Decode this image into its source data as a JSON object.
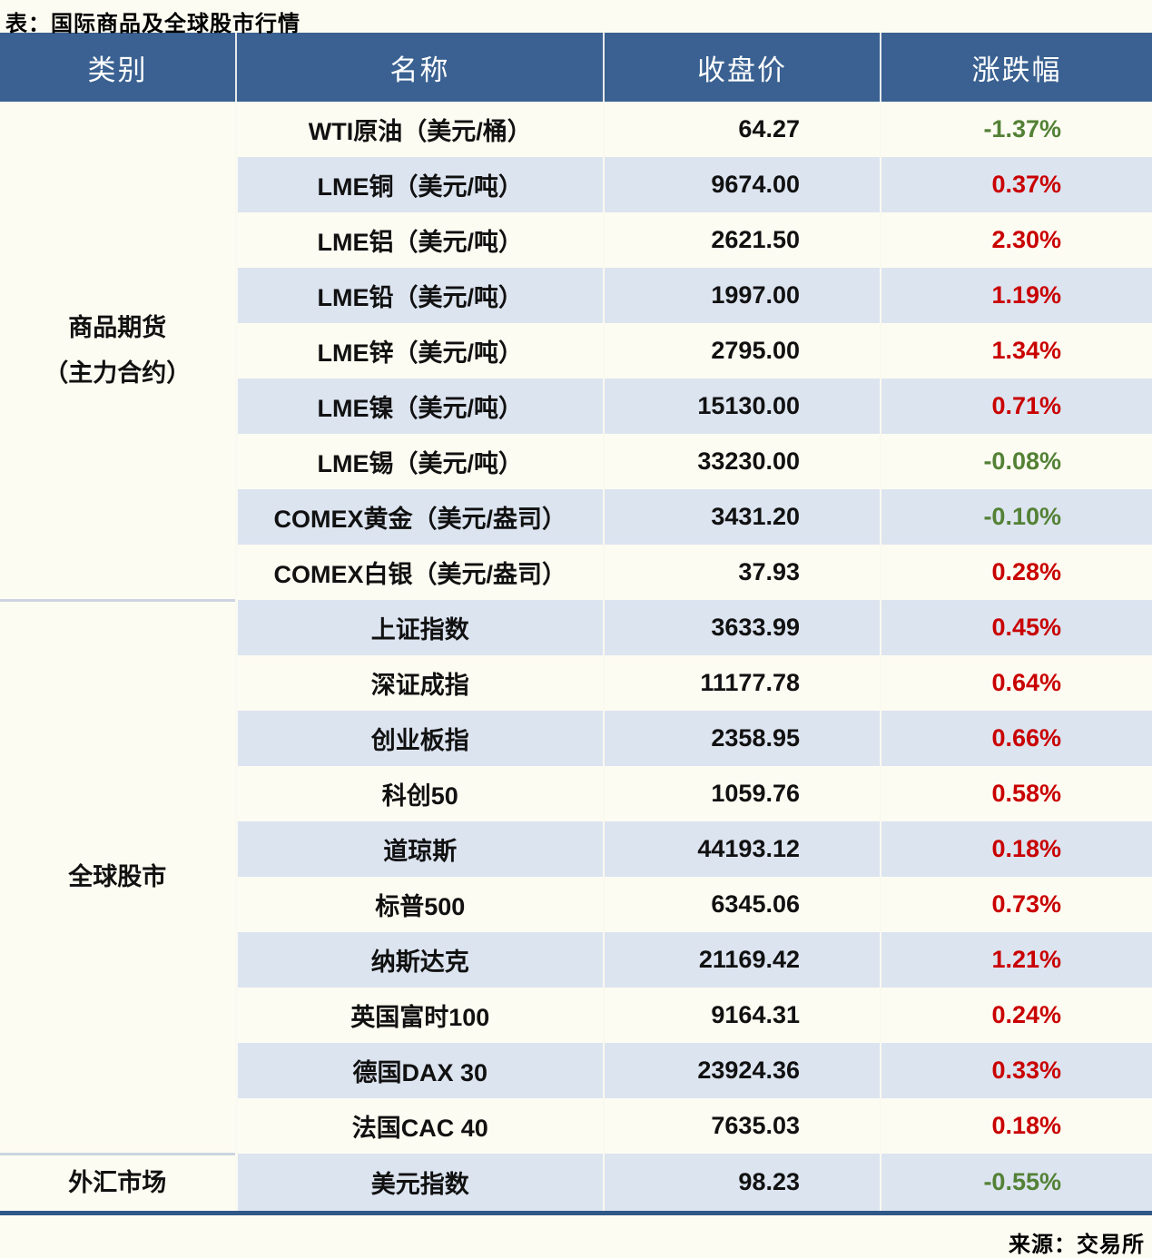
{
  "title": "表：国际商品及全球股市行情",
  "source": "来源：交易所",
  "colors": {
    "header_bg": "#3a6191",
    "row_bg": "#fdfcf2",
    "row_alt_bg": "#dce4f0",
    "up_red": "#c90000",
    "down_green": "#538135",
    "table_bottom_border": "#2f5788"
  },
  "table": {
    "headers": [
      "类别",
      "名称",
      "收盘价",
      "涨跌幅"
    ],
    "sections": [
      {
        "category_lines": [
          "商品期货",
          "（主力合约）"
        ],
        "rows": [
          {
            "name": "WTI原油（美元/桶）",
            "close": "64.27",
            "change": "-1.37%"
          },
          {
            "name": "LME铜（美元/吨）",
            "close": "9674.00",
            "change": "0.37%"
          },
          {
            "name": "LME铝（美元/吨）",
            "close": "2621.50",
            "change": "2.30%"
          },
          {
            "name": "LME铅（美元/吨）",
            "close": "1997.00",
            "change": "1.19%"
          },
          {
            "name": "LME锌（美元/吨）",
            "close": "2795.00",
            "change": "1.34%"
          },
          {
            "name": "LME镍（美元/吨）",
            "close": "15130.00",
            "change": "0.71%"
          },
          {
            "name": "LME锡（美元/吨）",
            "close": "33230.00",
            "change": "-0.08%"
          },
          {
            "name": "COMEX黄金（美元/盎司）",
            "close": "3431.20",
            "change": "-0.10%"
          },
          {
            "name": "COMEX白银（美元/盎司）",
            "close": "37.93",
            "change": "0.28%"
          }
        ]
      },
      {
        "category_lines": [
          "全球股市"
        ],
        "rows": [
          {
            "name": "上证指数",
            "close": "3633.99",
            "change": "0.45%"
          },
          {
            "name": "深证成指",
            "close": "11177.78",
            "change": "0.64%"
          },
          {
            "name": "创业板指",
            "close": "2358.95",
            "change": "0.66%"
          },
          {
            "name": "科创50",
            "close": "1059.76",
            "change": "0.58%"
          },
          {
            "name": "道琼斯",
            "close": "44193.12",
            "change": "0.18%"
          },
          {
            "name": "标普500",
            "close": "6345.06",
            "change": "0.73%"
          },
          {
            "name": "纳斯达克",
            "close": "21169.42",
            "change": "1.21%"
          },
          {
            "name": "英国富时100",
            "close": "9164.31",
            "change": "0.24%"
          },
          {
            "name": "德国DAX 30",
            "close": "23924.36",
            "change": "0.33%"
          },
          {
            "name": "法国CAC 40",
            "close": "7635.03",
            "change": "0.18%"
          }
        ]
      },
      {
        "category_lines": [
          "外汇市场"
        ],
        "rows": [
          {
            "name": "美元指数",
            "close": "98.23",
            "change": "-0.55%"
          }
        ]
      }
    ]
  },
  "chart_data": {
    "type": "table",
    "title": "表：国际商品及全球股市行情",
    "columns": [
      "类别",
      "名称",
      "收盘价",
      "涨跌幅"
    ],
    "rows": [
      [
        "商品期货（主力合约）",
        "WTI原油（美元/桶）",
        64.27,
        "-1.37%"
      ],
      [
        "商品期货（主力合约）",
        "LME铜（美元/吨）",
        9674.0,
        "0.37%"
      ],
      [
        "商品期货（主力合约）",
        "LME铝（美元/吨）",
        2621.5,
        "2.30%"
      ],
      [
        "商品期货（主力合约）",
        "LME铅（美元/吨）",
        1997.0,
        "1.19%"
      ],
      [
        "商品期货（主力合约）",
        "LME锌（美元/吨）",
        2795.0,
        "1.34%"
      ],
      [
        "商品期货（主力合约）",
        "LME镍（美元/吨）",
        15130.0,
        "0.71%"
      ],
      [
        "商品期货（主力合约）",
        "LME锡（美元/吨）",
        33230.0,
        "-0.08%"
      ],
      [
        "商品期货（主力合约）",
        "COMEX黄金（美元/盎司）",
        3431.2,
        "-0.10%"
      ],
      [
        "商品期货（主力合约）",
        "COMEX白银（美元/盎司）",
        37.93,
        "0.28%"
      ],
      [
        "全球股市",
        "上证指数",
        3633.99,
        "0.45%"
      ],
      [
        "全球股市",
        "深证成指",
        11177.78,
        "0.64%"
      ],
      [
        "全球股市",
        "创业板指",
        2358.95,
        "0.66%"
      ],
      [
        "全球股市",
        "科创50",
        1059.76,
        "0.58%"
      ],
      [
        "全球股市",
        "道琼斯",
        44193.12,
        "0.18%"
      ],
      [
        "全球股市",
        "标普500",
        6345.06,
        "0.73%"
      ],
      [
        "全球股市",
        "纳斯达克",
        21169.42,
        "1.21%"
      ],
      [
        "全球股市",
        "英国富时100",
        9164.31,
        "0.24%"
      ],
      [
        "全球股市",
        "德国DAX 30",
        23924.36,
        "0.33%"
      ],
      [
        "全球股市",
        "法国CAC 40",
        7635.03,
        "0.18%"
      ],
      [
        "外汇市场",
        "美元指数",
        98.23,
        "-0.55%"
      ]
    ],
    "notes": "涨跌幅颜色：正值红色(#c90000)，负值绿色(#538135)"
  }
}
